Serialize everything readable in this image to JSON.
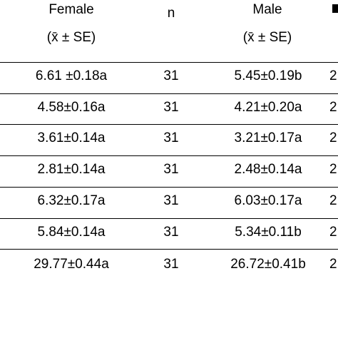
{
  "table": {
    "header": {
      "female_label": "Female",
      "female_stat": "(x̄ ± SE)",
      "n_label": "n",
      "male_label": "Male",
      "male_stat": "(x̄ ± SE)"
    },
    "rows": [
      {
        "edge": "4",
        "female": "6.61 ±0.18a",
        "n": "31",
        "male": "5.45±0.19b",
        "right": "2"
      },
      {
        "edge": "3",
        "female": "4.58±0.16a",
        "n": "31",
        "male": "4.21±0.20a",
        "right": "2"
      },
      {
        "edge": "3",
        "female": "3.61±0.14a",
        "n": "31",
        "male": "3.21±0.17a",
        "right": "2"
      },
      {
        "edge": "3",
        "female": "2.81±0.14a",
        "n": "31",
        "male": "2.48±0.14a",
        "right": "2"
      },
      {
        "edge": "0",
        "female": "6.32±0.17a",
        "n": "31",
        "male": "6.03±0.17a",
        "right": "2"
      },
      {
        "edge": "0",
        "female": "5.84±0.14a",
        "n": "31",
        "male": "5.34±0.11b",
        "right": "2"
      },
      {
        "edge": "0",
        "female": "29.77±0.44a",
        "n": "31",
        "male": "26.72±0.41b",
        "right": "2"
      }
    ]
  }
}
